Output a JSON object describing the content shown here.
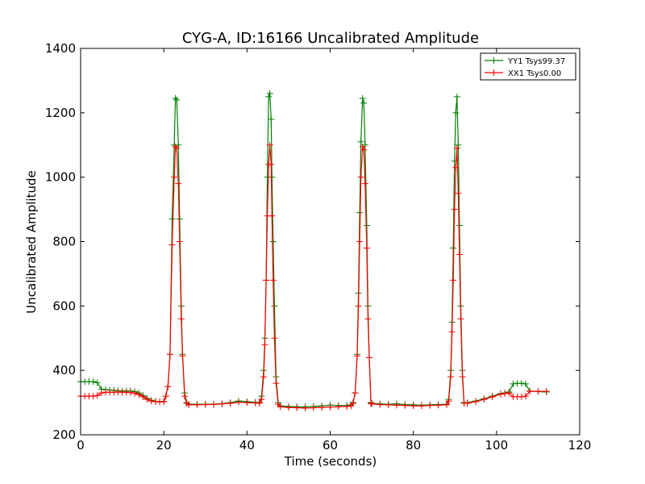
{
  "chart_data": {
    "type": "line",
    "title": "CYG-A, ID:16166 Uncalibrated Amplitude",
    "xlabel": "Time (seconds)",
    "ylabel": "Uncalibrated Amplitude",
    "xlim": [
      0,
      120
    ],
    "ylim": [
      200,
      1400
    ],
    "xticks": [
      0,
      20,
      40,
      60,
      80,
      100,
      120
    ],
    "yticks": [
      200,
      400,
      600,
      800,
      1000,
      1200,
      1400
    ],
    "grid": false,
    "legend_position": "top-right",
    "series": [
      {
        "name": "YY1 Tsys99.37",
        "color": "#008000",
        "points": [
          [
            0,
            365
          ],
          [
            1,
            365
          ],
          [
            2,
            365
          ],
          [
            3,
            365
          ],
          [
            4,
            362
          ],
          [
            5,
            342
          ],
          [
            6,
            340
          ],
          [
            7,
            339
          ],
          [
            8,
            338
          ],
          [
            9,
            337
          ],
          [
            10,
            336
          ],
          [
            11,
            336
          ],
          [
            12,
            336
          ],
          [
            13,
            334
          ],
          [
            14,
            330
          ],
          [
            15,
            322
          ],
          [
            16,
            313
          ],
          [
            17,
            307
          ],
          [
            18,
            304
          ],
          [
            19,
            303
          ],
          [
            20,
            304
          ],
          [
            20.5,
            320
          ],
          [
            21,
            350
          ],
          [
            21.5,
            450
          ],
          [
            22,
            870
          ],
          [
            22.5,
            1100
          ],
          [
            22.8,
            1245
          ],
          [
            23.1,
            1240
          ],
          [
            23.5,
            1100
          ],
          [
            23.8,
            870
          ],
          [
            24.2,
            600
          ],
          [
            24.5,
            450
          ],
          [
            25,
            330
          ],
          [
            25.5,
            300
          ],
          [
            26,
            295
          ],
          [
            28,
            295
          ],
          [
            30,
            295
          ],
          [
            32,
            295
          ],
          [
            34,
            297
          ],
          [
            36,
            300
          ],
          [
            38,
            305
          ],
          [
            40,
            303
          ],
          [
            42,
            301
          ],
          [
            43,
            300
          ],
          [
            43.5,
            320
          ],
          [
            44,
            400
          ],
          [
            44.3,
            500
          ],
          [
            44.6,
            680
          ],
          [
            44.9,
            1000
          ],
          [
            45.2,
            1250
          ],
          [
            45.5,
            1260
          ],
          [
            45.8,
            1180
          ],
          [
            46,
            1000
          ],
          [
            46.3,
            800
          ],
          [
            46.6,
            600
          ],
          [
            47,
            380
          ],
          [
            47.5,
            300
          ],
          [
            48,
            290
          ],
          [
            50,
            288
          ],
          [
            52,
            287
          ],
          [
            54,
            287
          ],
          [
            56,
            288
          ],
          [
            58,
            290
          ],
          [
            60,
            292
          ],
          [
            62,
            291
          ],
          [
            64,
            291
          ],
          [
            65,
            293
          ],
          [
            65.5,
            300
          ],
          [
            66,
            330
          ],
          [
            66.5,
            450
          ],
          [
            66.8,
            640
          ],
          [
            67.1,
            890
          ],
          [
            67.4,
            1110
          ],
          [
            67.8,
            1245
          ],
          [
            68.1,
            1230
          ],
          [
            68.4,
            1100
          ],
          [
            68.8,
            850
          ],
          [
            69.1,
            600
          ],
          [
            69.4,
            440
          ],
          [
            69.8,
            300
          ],
          [
            70,
            298
          ],
          [
            72,
            296
          ],
          [
            74,
            295
          ],
          [
            76,
            296
          ],
          [
            78,
            294
          ],
          [
            80,
            293
          ],
          [
            82,
            292
          ],
          [
            84,
            293
          ],
          [
            86,
            294
          ],
          [
            88,
            295
          ],
          [
            88.5,
            310
          ],
          [
            89,
            400
          ],
          [
            89.3,
            550
          ],
          [
            89.6,
            780
          ],
          [
            89.9,
            1050
          ],
          [
            90.2,
            1200
          ],
          [
            90.5,
            1250
          ],
          [
            90.8,
            1100
          ],
          [
            91.1,
            850
          ],
          [
            91.4,
            600
          ],
          [
            91.8,
            400
          ],
          [
            92.2,
            300
          ],
          [
            93,
            300
          ],
          [
            95,
            305
          ],
          [
            97,
            312
          ],
          [
            99,
            320
          ],
          [
            101,
            328
          ],
          [
            102,
            330
          ],
          [
            103,
            333
          ],
          [
            104,
            358
          ],
          [
            105,
            360
          ],
          [
            106,
            360
          ],
          [
            107,
            358
          ],
          [
            108,
            336
          ],
          [
            110,
            334
          ],
          [
            112,
            333
          ]
        ]
      },
      {
        "name": "XX1 Tsys0.00",
        "color": "#ff0000",
        "points": [
          [
            0,
            320
          ],
          [
            1,
            320
          ],
          [
            2,
            320
          ],
          [
            3,
            320
          ],
          [
            4,
            322
          ],
          [
            5,
            330
          ],
          [
            6,
            332
          ],
          [
            7,
            332
          ],
          [
            8,
            332
          ],
          [
            9,
            333
          ],
          [
            10,
            332
          ],
          [
            11,
            332
          ],
          [
            12,
            331
          ],
          [
            13,
            329
          ],
          [
            14,
            325
          ],
          [
            15,
            318
          ],
          [
            16,
            310
          ],
          [
            17,
            305
          ],
          [
            18,
            303
          ],
          [
            19,
            302
          ],
          [
            20,
            303
          ],
          [
            20.5,
            320
          ],
          [
            21,
            350
          ],
          [
            21.5,
            450
          ],
          [
            22,
            790
          ],
          [
            22.5,
            1000
          ],
          [
            22.8,
            1095
          ],
          [
            23.1,
            1090
          ],
          [
            23.5,
            980
          ],
          [
            23.8,
            800
          ],
          [
            24.2,
            560
          ],
          [
            24.5,
            445
          ],
          [
            25,
            320
          ],
          [
            25.5,
            298
          ],
          [
            26,
            293
          ],
          [
            28,
            293
          ],
          [
            30,
            294
          ],
          [
            32,
            294
          ],
          [
            34,
            296
          ],
          [
            36,
            298
          ],
          [
            38,
            301
          ],
          [
            40,
            300
          ],
          [
            42,
            299
          ],
          [
            43,
            298
          ],
          [
            43.5,
            310
          ],
          [
            44,
            380
          ],
          [
            44.3,
            480
          ],
          [
            44.6,
            680
          ],
          [
            44.9,
            880
          ],
          [
            45.2,
            1040
          ],
          [
            45.5,
            1100
          ],
          [
            45.8,
            1040
          ],
          [
            46,
            880
          ],
          [
            46.3,
            680
          ],
          [
            46.6,
            500
          ],
          [
            47,
            360
          ],
          [
            47.5,
            295
          ],
          [
            48,
            287
          ],
          [
            50,
            285
          ],
          [
            52,
            284
          ],
          [
            54,
            283
          ],
          [
            56,
            284
          ],
          [
            58,
            285
          ],
          [
            60,
            286
          ],
          [
            62,
            287
          ],
          [
            64,
            288
          ],
          [
            65,
            290
          ],
          [
            65.5,
            298
          ],
          [
            66,
            330
          ],
          [
            66.5,
            445
          ],
          [
            66.8,
            600
          ],
          [
            67.1,
            800
          ],
          [
            67.4,
            1000
          ],
          [
            67.8,
            1095
          ],
          [
            68.1,
            1085
          ],
          [
            68.4,
            980
          ],
          [
            68.8,
            780
          ],
          [
            69.1,
            560
          ],
          [
            69.4,
            440
          ],
          [
            69.8,
            298
          ],
          [
            70,
            296
          ],
          [
            72,
            294
          ],
          [
            74,
            293
          ],
          [
            76,
            292
          ],
          [
            78,
            291
          ],
          [
            80,
            290
          ],
          [
            82,
            290
          ],
          [
            84,
            291
          ],
          [
            86,
            292
          ],
          [
            88,
            293
          ],
          [
            88.5,
            305
          ],
          [
            89,
            380
          ],
          [
            89.3,
            520
          ],
          [
            89.6,
            680
          ],
          [
            89.9,
            900
          ],
          [
            90.2,
            1030
          ],
          [
            90.5,
            1090
          ],
          [
            90.8,
            950
          ],
          [
            91.1,
            760
          ],
          [
            91.4,
            560
          ],
          [
            91.8,
            380
          ],
          [
            92.2,
            298
          ],
          [
            93,
            298
          ],
          [
            95,
            303
          ],
          [
            97,
            310
          ],
          [
            99,
            318
          ],
          [
            101,
            326
          ],
          [
            102,
            328
          ],
          [
            103,
            330
          ],
          [
            104,
            318
          ],
          [
            105,
            318
          ],
          [
            106,
            318
          ],
          [
            107,
            320
          ],
          [
            108,
            335
          ],
          [
            110,
            335
          ],
          [
            112,
            335
          ]
        ]
      }
    ]
  }
}
